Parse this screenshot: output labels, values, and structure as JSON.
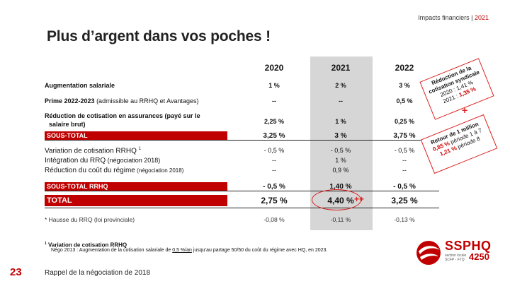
{
  "header": {
    "section": "Impacts financiers | ",
    "year": "2021"
  },
  "title": "Plus d’argent dans vos poches !",
  "years": [
    "2020",
    "2021",
    "2022"
  ],
  "rows": {
    "aug": {
      "label": "Augmentation salariale",
      "v": [
        "1 %",
        "2 %",
        "3 %"
      ]
    },
    "prime": {
      "label": "Prime 2022-2023",
      "label2": " (admissible au RRHQ et Avantages)",
      "v": [
        "--",
        "--",
        "0,5 %"
      ]
    },
    "reduc": {
      "label": "Réduction de cotisation en assurances",
      "label2": " (payé sur le",
      "label3": "salaire brut)",
      "v": [
        "2,25 %",
        "1 %",
        "0,25 %"
      ]
    },
    "sous1": {
      "label": "SOUS-TOTAL",
      "v": [
        "3,25 %",
        "3 %",
        "3,75 %"
      ]
    },
    "var": {
      "label": "Variation de cotisation RRHQ",
      "sup": "1",
      "v": [
        "- 0,5 %",
        "- 0,5 %",
        "- 0,5 %"
      ]
    },
    "integ": {
      "label": "Intégration du RRQ",
      "label2": " (négociation 2018)",
      "v": [
        "--",
        "1 %",
        "--"
      ]
    },
    "cout": {
      "label": "Réduction du coût du régime",
      "label2": " (négociation 2018)",
      "v": [
        "--",
        "0,9 %",
        "--"
      ]
    },
    "sous2": {
      "label": "SOUS-TOTAL   RRHQ",
      "v": [
        "- 0,5 %",
        "1,40 %",
        "- 0,5 %"
      ]
    },
    "total": {
      "label": "TOTAL",
      "v": [
        "2,75 %",
        "4,40 %",
        "3,25 %"
      ]
    },
    "hausse": {
      "label": "* Hausse du RRQ (loi provinciale)",
      "v": [
        "-0,08 %",
        "-0,11 %",
        "-0,13 %"
      ]
    }
  },
  "highlight_mark": "++",
  "callout1": {
    "l1": "Réduction de la",
    "l2": "cotisation syndicale",
    "l3a": "2020 : 1,41 %",
    "l4a": "2021 : ",
    "l4b": "1,35 %"
  },
  "plus": "+",
  "callout2": {
    "l1": "Retour de 1 million",
    "l2a": "0,85 %",
    "l2b": " période 1 à 7",
    "l3a": "1,21 %",
    "l3b": " période 8"
  },
  "note": {
    "sup": "1",
    "title": " Variation de cotisation RRHQ",
    "t1": "Négo 2013 : Augmentation de la cotisation salariale de ",
    "t2": "0,5 %/an",
    "t3": " jusqu’au partage 50/50 du coût du régime avec HQ, en 2023."
  },
  "footer": {
    "page": "23",
    "text": "Rappel de la négociation de 2018"
  },
  "logo": {
    "name": "SSPHQ",
    "sub1": "section locale",
    "sub2": "SCFP - FTQ",
    "num": "4250",
    "color": "#c00000"
  },
  "colors": {
    "accent": "#c00000",
    "highlight_column": "#d6d6d6"
  }
}
